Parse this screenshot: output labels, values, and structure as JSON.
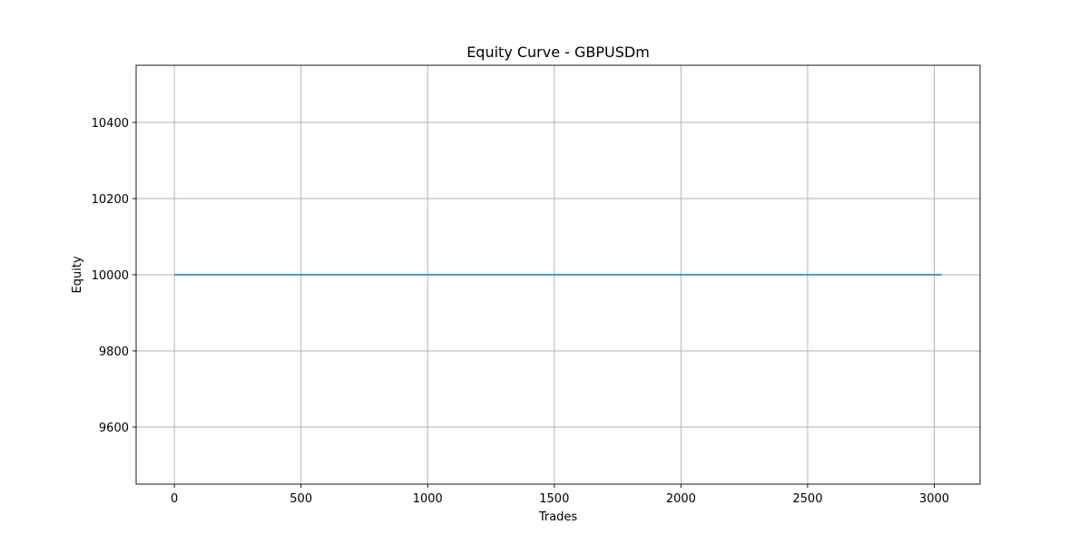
{
  "chart_data": {
    "type": "line",
    "title": "Equity Curve - GBPUSDm",
    "xlabel": "Trades",
    "ylabel": "Equity",
    "xlim": [
      -151,
      3181
    ],
    "ylim": [
      9450,
      10550
    ],
    "xticks": [
      0,
      500,
      1000,
      1500,
      2000,
      2500,
      3000
    ],
    "yticks": [
      9600,
      9800,
      10000,
      10200,
      10400
    ],
    "grid": true,
    "series": [
      {
        "color": "#1f77b4",
        "x": [
          0,
          3030
        ],
        "y": [
          10000,
          10000
        ]
      }
    ]
  }
}
